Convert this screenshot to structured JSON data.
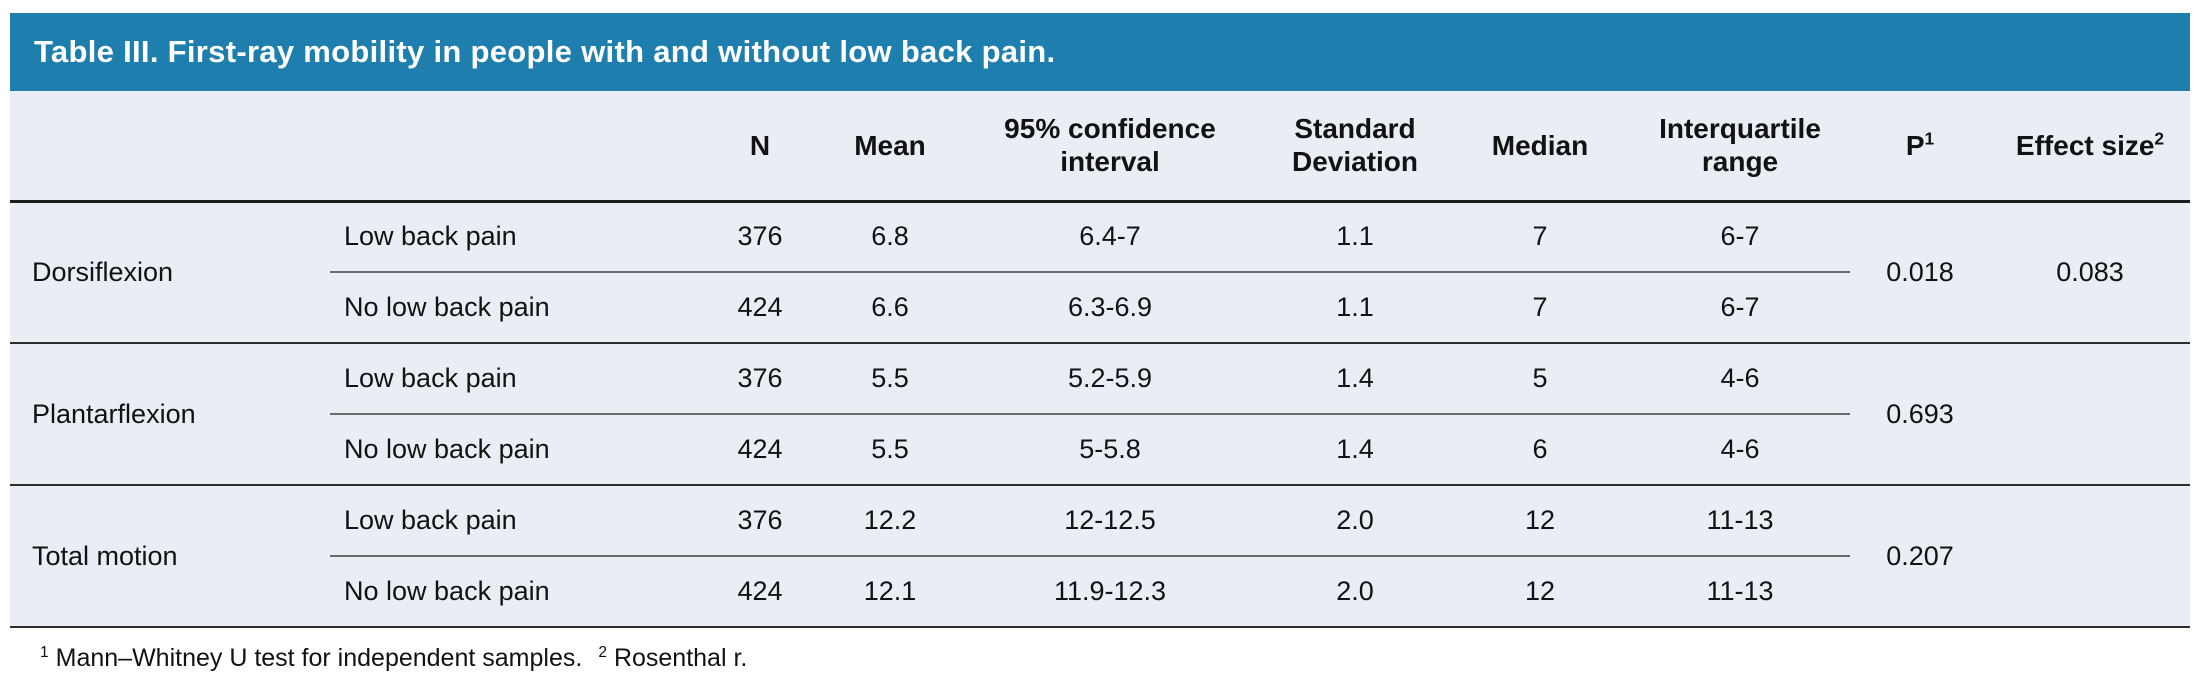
{
  "title": "Table III. First-ray mobility in people with and without low back pain.",
  "colors": {
    "title_bar_bg": "#1e7ead",
    "title_text": "#ffffff",
    "table_bg": "#e9edf4",
    "text": "#121212",
    "heavy_rule": "#1d1d1d",
    "group_rule": "#2e2e2e",
    "sub_rule": "#6c6c6c"
  },
  "table": {
    "columns": [
      {
        "label": "",
        "sup": ""
      },
      {
        "label": "",
        "sup": ""
      },
      {
        "label": "N",
        "sup": ""
      },
      {
        "label": "Mean",
        "sup": ""
      },
      {
        "label": "95% confidence interval",
        "sup": ""
      },
      {
        "label": "Standard Deviation",
        "sup": ""
      },
      {
        "label": "Median",
        "sup": ""
      },
      {
        "label": "Interquartile range",
        "sup": ""
      },
      {
        "label": "P",
        "sup": "1"
      },
      {
        "label": "Effect size",
        "sup": "2"
      }
    ],
    "groups": [
      {
        "label": "Dorsiflexion",
        "p": "0.018",
        "effect_size": "0.083",
        "rows": [
          {
            "condition": "Low back pain",
            "n": "376",
            "mean": "6.8",
            "ci": "6.4-7",
            "sd": "1.1",
            "median": "7",
            "iqr": "6-7"
          },
          {
            "condition": "No low back pain",
            "n": "424",
            "mean": "6.6",
            "ci": "6.3-6.9",
            "sd": "1.1",
            "median": "7",
            "iqr": "6-7"
          }
        ]
      },
      {
        "label": "Plantarflexion",
        "p": "0.693",
        "effect_size": "",
        "rows": [
          {
            "condition": "Low back pain",
            "n": "376",
            "mean": "5.5",
            "ci": "5.2-5.9",
            "sd": "1.4",
            "median": "5",
            "iqr": "4-6"
          },
          {
            "condition": "No low back pain",
            "n": "424",
            "mean": "5.5",
            "ci": "5-5.8",
            "sd": "1.4",
            "median": "6",
            "iqr": "4-6"
          }
        ]
      },
      {
        "label": "Total motion",
        "p": "0.207",
        "effect_size": "",
        "rows": [
          {
            "condition": "Low back pain",
            "n": "376",
            "mean": "12.2",
            "ci": "12-12.5",
            "sd": "2.0",
            "median": "12",
            "iqr": "11-13"
          },
          {
            "condition": "No low back pain",
            "n": "424",
            "mean": "12.1",
            "ci": "11.9-12.3",
            "sd": "2.0",
            "median": "12",
            "iqr": "11-13"
          }
        ]
      }
    ]
  },
  "footnotes": [
    {
      "marker": "1",
      "text": "Mann–Whitney U test for independent samples."
    },
    {
      "marker": "2",
      "text": "Rosenthal r."
    }
  ]
}
